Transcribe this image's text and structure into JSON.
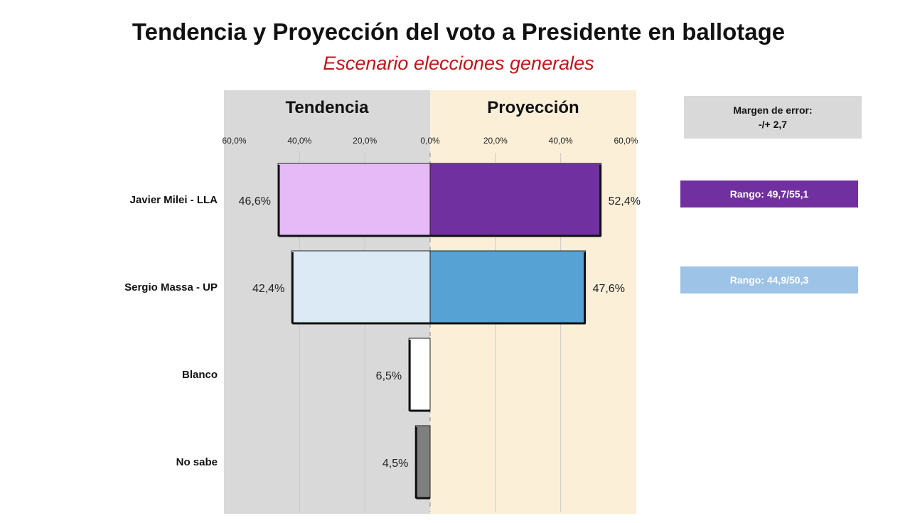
{
  "header": {
    "title": "Tendencia y Proyección del voto a Presidente en ballotage",
    "subtitle": "Escenario elecciones generales"
  },
  "panels": {
    "left_title": "Tendencia",
    "right_title": "Proyección"
  },
  "margin_box": {
    "line1": "Margen de error:",
    "line2": "-/+  2,7"
  },
  "ranges": [
    {
      "label": "Rango: 49,7/55,1",
      "color": "#7030a0"
    },
    {
      "label": "Rango: 44,9/50,3",
      "color": "#9dc3e6"
    }
  ],
  "chart_data": {
    "type": "bar",
    "orientation": "horizontal-butterfly",
    "categories": [
      "Javier Milei - LLA",
      "Sergio Massa - UP",
      "Blanco",
      "No sabe"
    ],
    "axis_ticks": [
      "60,0%",
      "40,0%",
      "20,0%",
      "0,0%",
      "20,0%",
      "40,0%",
      "60,0%"
    ],
    "xlim": [
      -60,
      60
    ],
    "series": [
      {
        "name": "Tendencia",
        "side": "left",
        "values": [
          46.6,
          42.4,
          6.5,
          4.5
        ],
        "labels": [
          "46,6%",
          "42,4%",
          "6,5%",
          "4,5%"
        ],
        "colors": [
          "#e6b9f7",
          "#dbeaf4",
          "#ffffff",
          "#7f7f7f"
        ]
      },
      {
        "name": "Proyección",
        "side": "right",
        "values": [
          52.4,
          47.6,
          null,
          null
        ],
        "labels": [
          "52,4%",
          "47,6%",
          "",
          ""
        ],
        "colors": [
          "#7030a0",
          "#56a2d5",
          "",
          ""
        ]
      }
    ],
    "grid": true
  }
}
